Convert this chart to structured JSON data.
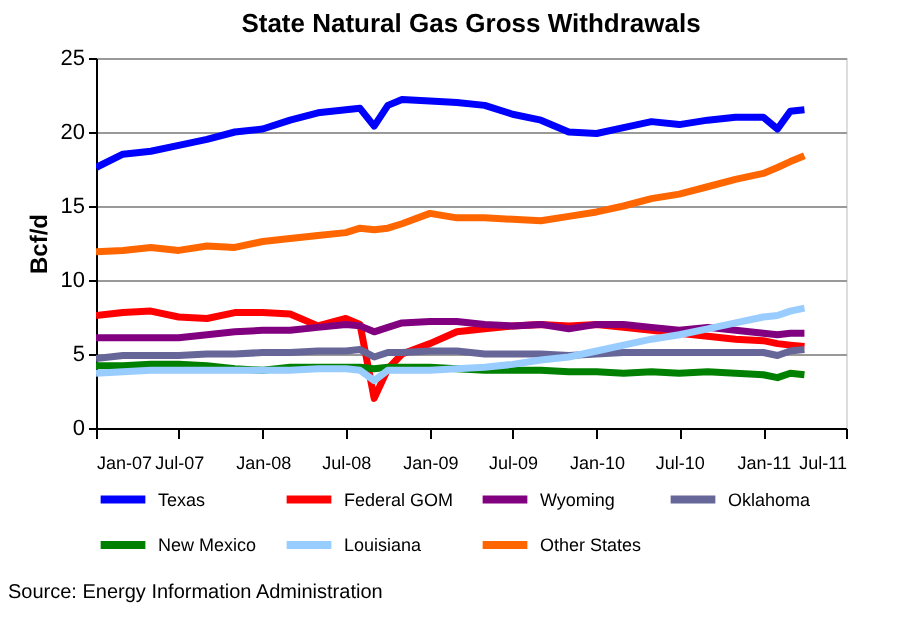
{
  "chart_data": {
    "type": "line",
    "title": "State Natural Gas Gross Withdrawals",
    "ylabel": "Bcf/d",
    "x": [
      "2007-01",
      "2007-03",
      "2007-05",
      "2007-07",
      "2007-09",
      "2007-11",
      "2008-01",
      "2008-03",
      "2008-05",
      "2008-07",
      "2008-08",
      "2008-09",
      "2008-10",
      "2008-11",
      "2009-01",
      "2009-03",
      "2009-05",
      "2009-07",
      "2009-09",
      "2009-11",
      "2010-01",
      "2010-03",
      "2010-05",
      "2010-07",
      "2010-09",
      "2010-11",
      "2011-01",
      "2011-02",
      "2011-03",
      "2011-04"
    ],
    "series": [
      {
        "name": "Texas",
        "color": "#0000ff",
        "values": [
          17.6,
          18.5,
          18.7,
          19.1,
          19.5,
          20.0,
          20.2,
          20.8,
          21.3,
          21.5,
          21.6,
          20.4,
          21.8,
          22.2,
          22.1,
          22.0,
          21.8,
          21.2,
          20.8,
          20.0,
          19.9,
          20.3,
          20.7,
          20.5,
          20.8,
          21.0,
          21.0,
          20.2,
          21.4,
          21.5
        ]
      },
      {
        "name": "Federal GOM",
        "color": "#ff0000",
        "values": [
          7.6,
          7.8,
          7.9,
          7.5,
          7.4,
          7.8,
          7.8,
          7.7,
          6.9,
          7.4,
          7.0,
          2.0,
          4.0,
          5.0,
          5.7,
          6.5,
          6.7,
          6.9,
          7.0,
          6.9,
          7.0,
          6.8,
          6.6,
          6.4,
          6.2,
          6.0,
          5.9,
          5.7,
          5.6,
          5.5
        ]
      },
      {
        "name": "Wyoming",
        "color": "#800080",
        "values": [
          6.1,
          6.1,
          6.1,
          6.1,
          6.3,
          6.5,
          6.6,
          6.6,
          6.8,
          7.0,
          6.9,
          6.5,
          6.8,
          7.1,
          7.2,
          7.2,
          7.0,
          6.9,
          7.0,
          6.7,
          7.0,
          7.0,
          6.8,
          6.6,
          6.8,
          6.6,
          6.4,
          6.3,
          6.4,
          6.4
        ]
      },
      {
        "name": "Oklahoma",
        "color": "#666699",
        "values": [
          4.7,
          4.9,
          4.9,
          4.9,
          5.0,
          5.0,
          5.1,
          5.1,
          5.2,
          5.2,
          5.3,
          4.8,
          5.1,
          5.1,
          5.2,
          5.2,
          5.0,
          5.0,
          5.0,
          4.9,
          5.0,
          5.1,
          5.1,
          5.1,
          5.1,
          5.1,
          5.1,
          4.9,
          5.2,
          5.3
        ]
      },
      {
        "name": "New Mexico",
        "color": "#008000",
        "values": [
          4.2,
          4.2,
          4.3,
          4.3,
          4.2,
          4.0,
          3.9,
          4.1,
          4.1,
          4.1,
          4.1,
          4.0,
          4.1,
          4.1,
          4.1,
          4.0,
          3.9,
          3.9,
          3.9,
          3.8,
          3.8,
          3.7,
          3.8,
          3.7,
          3.8,
          3.7,
          3.6,
          3.4,
          3.7,
          3.6
        ]
      },
      {
        "name": "Louisiana",
        "color": "#99ccff",
        "values": [
          3.7,
          3.8,
          3.9,
          3.9,
          3.9,
          3.9,
          3.9,
          3.9,
          4.0,
          4.0,
          3.9,
          3.2,
          3.9,
          3.9,
          3.9,
          4.0,
          4.1,
          4.3,
          4.6,
          4.8,
          5.2,
          5.6,
          6.0,
          6.3,
          6.7,
          7.1,
          7.5,
          7.6,
          7.9,
          8.1
        ]
      },
      {
        "name": "Other States",
        "color": "#ff6600",
        "values": [
          11.9,
          12.0,
          12.2,
          12.0,
          12.3,
          12.2,
          12.6,
          12.8,
          13.0,
          13.2,
          13.5,
          13.4,
          13.5,
          13.8,
          14.5,
          14.2,
          14.2,
          14.1,
          14.0,
          14.3,
          14.6,
          15.0,
          15.5,
          15.8,
          16.3,
          16.8,
          17.2,
          17.6,
          18.0,
          18.4
        ]
      }
    ],
    "xlim": [
      "2007-01",
      "2011-07"
    ],
    "xticks": [
      {
        "value": "2007-01",
        "label": "Jan-07"
      },
      {
        "value": "2007-07",
        "label": "Jul-07"
      },
      {
        "value": "2008-01",
        "label": "Jan-08"
      },
      {
        "value": "2008-07",
        "label": "Jul-08"
      },
      {
        "value": "2009-01",
        "label": "Jan-09"
      },
      {
        "value": "2009-07",
        "label": "Jul-09"
      },
      {
        "value": "2010-01",
        "label": "Jan-10"
      },
      {
        "value": "2010-07",
        "label": "Jul-10"
      },
      {
        "value": "2011-01",
        "label": "Jan-11"
      },
      {
        "value": "2011-07",
        "label": "Jul-11"
      }
    ],
    "ylim": [
      0,
      25
    ],
    "yticks": [
      0,
      5,
      10,
      15,
      20,
      25
    ],
    "grid": "y",
    "legend": "bottom",
    "marker": "none",
    "line_style": "solid",
    "annotations": [
      "Source: Energy Information Administration"
    ]
  }
}
